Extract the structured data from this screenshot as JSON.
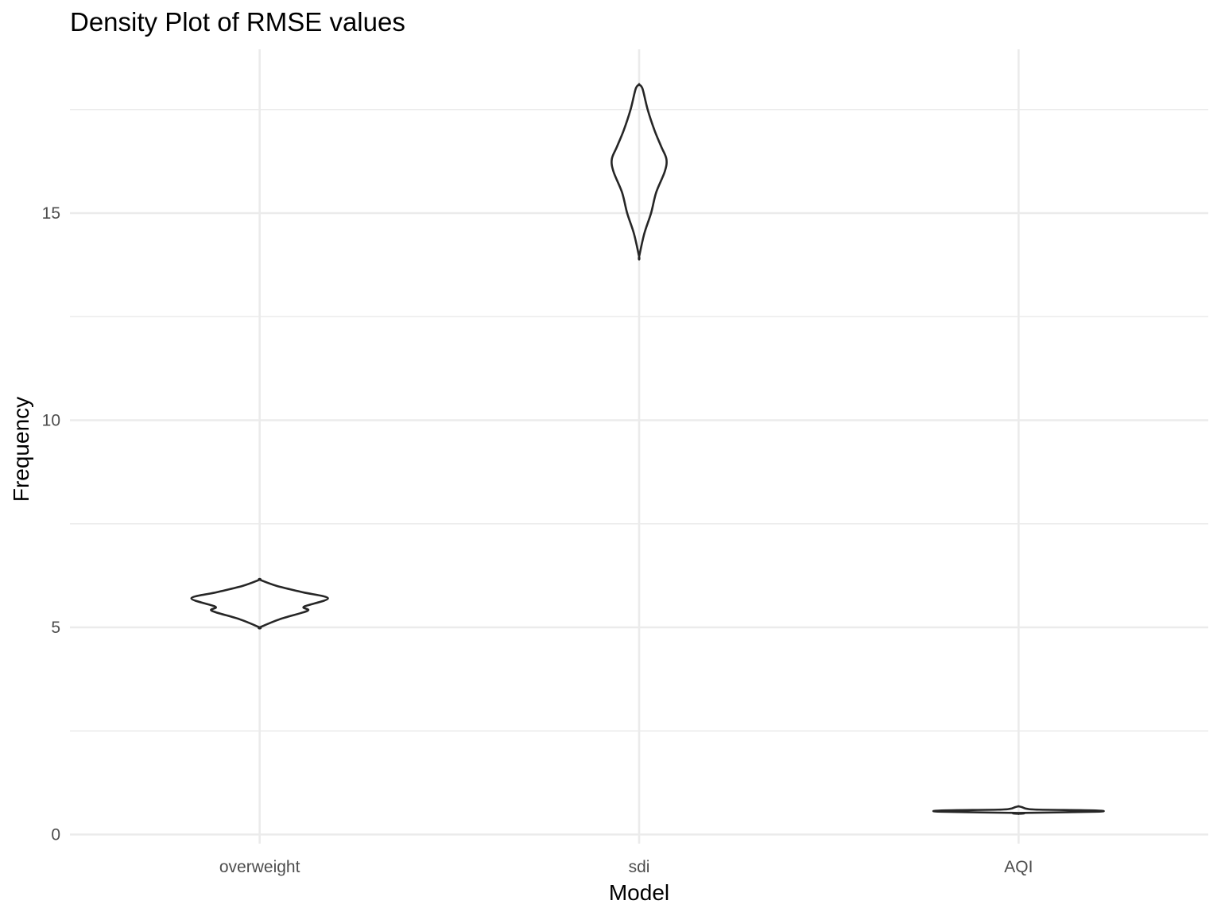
{
  "chart_data": {
    "type": "violin",
    "title": "Density Plot of RMSE values",
    "xlabel": "Model",
    "ylabel": "Frequency",
    "categories": [
      "overweight",
      "sdi",
      "AQI"
    ],
    "y_ticks": [
      0,
      5,
      10,
      15
    ],
    "y_tick_labels": [
      "0",
      "5",
      "10",
      "15"
    ],
    "ylim": [
      -0.2,
      18.9
    ],
    "grid": true,
    "series": [
      {
        "category": "overweight",
        "min": 5.0,
        "max": 6.15,
        "profile": [
          [
            5.0,
            0.0
          ],
          [
            5.2,
            0.12
          ],
          [
            5.4,
            0.28
          ],
          [
            5.5,
            0.26
          ],
          [
            5.7,
            0.4
          ],
          [
            5.85,
            0.25
          ],
          [
            6.0,
            0.1
          ],
          [
            6.15,
            0.0
          ]
        ]
      },
      {
        "category": "sdi",
        "min": 13.95,
        "max": 18.1,
        "profile": [
          [
            13.95,
            0.0
          ],
          [
            14.5,
            0.03
          ],
          [
            15.0,
            0.07
          ],
          [
            15.5,
            0.1
          ],
          [
            16.0,
            0.15
          ],
          [
            16.3,
            0.16
          ],
          [
            16.6,
            0.13
          ],
          [
            17.0,
            0.09
          ],
          [
            17.5,
            0.05
          ],
          [
            18.0,
            0.02
          ],
          [
            18.1,
            0.0
          ]
        ]
      },
      {
        "category": "AQI",
        "min": 0.5,
        "max": 0.68,
        "profile": [
          [
            0.5,
            0.0
          ],
          [
            0.52,
            0.0
          ],
          [
            0.55,
            0.45
          ],
          [
            0.58,
            0.45
          ],
          [
            0.6,
            0.12
          ],
          [
            0.62,
            0.05
          ],
          [
            0.66,
            0.02
          ],
          [
            0.68,
            0.0
          ]
        ]
      }
    ]
  }
}
